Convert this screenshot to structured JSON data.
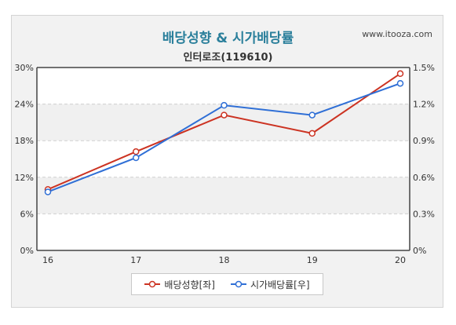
{
  "header": {
    "title": "배당성향 & 시가배당률",
    "site": "www.itooza.com",
    "subtitle": "인터로조(119610)"
  },
  "colors": {
    "series_left": "#cc3322",
    "series_right": "#2f6fd6",
    "title": "#2a7f9b"
  },
  "chart_data": {
    "type": "line",
    "x": [
      "16",
      "17",
      "18",
      "19",
      "20"
    ],
    "y_left_ticks": [
      "0%",
      "6%",
      "12%",
      "18%",
      "24%",
      "30%"
    ],
    "y_right_ticks": [
      "0%",
      "0.3%",
      "0.6%",
      "0.9%",
      "1.2%",
      "1.5%"
    ],
    "y_left_range": [
      0,
      30
    ],
    "y_right_range": [
      0,
      1.5
    ],
    "grid": true,
    "legend_position": "bottom",
    "series": [
      {
        "name": "배당성향[좌]",
        "axis": "left",
        "values": [
          10.0,
          16.2,
          22.2,
          19.2,
          29.0
        ]
      },
      {
        "name": "시가배당률[우]",
        "axis": "right",
        "values": [
          0.48,
          0.76,
          1.19,
          1.11,
          1.37
        ]
      }
    ]
  }
}
